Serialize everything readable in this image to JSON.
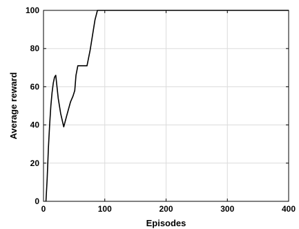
{
  "chart_data": {
    "type": "line",
    "title": "",
    "xlabel": "Episodes",
    "ylabel": "Average reward",
    "xlim": [
      0,
      400
    ],
    "ylim": [
      0,
      100
    ],
    "grid": true,
    "x_ticks": [
      0,
      100,
      200,
      300,
      400
    ],
    "y_ticks": [
      0,
      20,
      40,
      60,
      80,
      100
    ],
    "x_tick_labels": [
      "0",
      "100",
      "200",
      "300",
      "400"
    ],
    "y_tick_labels": [
      "0",
      "20",
      "40",
      "60",
      "80",
      "100"
    ],
    "colors": {
      "line": "#000000",
      "grid": "#dcdcdc",
      "axis": "#000000"
    },
    "series": [
      {
        "x": [
          4,
          6,
          8,
          10,
          12,
          14,
          16,
          18,
          20,
          24,
          28,
          33,
          38,
          44,
          48,
          51,
          53,
          56,
          61,
          66,
          71,
          76,
          80,
          84,
          88,
          100,
          200,
          300,
          400
        ],
        "y": [
          0,
          12,
          28,
          40,
          50,
          57,
          62,
          65,
          66,
          54,
          46,
          39,
          45,
          52,
          55,
          58,
          66,
          71,
          71,
          71,
          71,
          79,
          87,
          95,
          100,
          100,
          100,
          100,
          100
        ]
      }
    ]
  }
}
